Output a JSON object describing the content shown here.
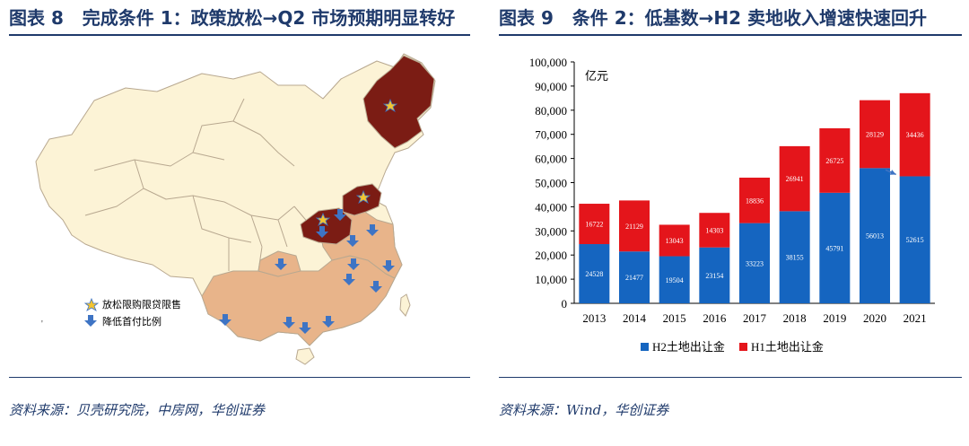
{
  "left_panel": {
    "figure_label": "图表 8",
    "title": "完成条件 1：政策放松→Q2 市场预期明显转好",
    "legend": [
      {
        "label": "放松限购限贷限售",
        "icon": "star-icon"
      },
      {
        "label": "降低首付比例",
        "icon": "down-arrow-icon"
      }
    ],
    "stray_mark": "'",
    "source": "资料来源：贝壳研究院，中房网，华创证券",
    "colors": {
      "relaxed": "#7b1c14",
      "lower_down_payment": "#e8b48a",
      "other": "#fcf3d6",
      "border": "#b8a890",
      "arrow": "#3e74c4",
      "star": "#f4c430"
    }
  },
  "right_panel": {
    "figure_label": "图表 9",
    "title": "条件 2：低基数→H2 卖地收入增速快速回升",
    "source": "资料来源：Wind，华创证券"
  },
  "chart_data": {
    "type": "bar",
    "stacked": true,
    "categories": [
      "2013",
      "2014",
      "2015",
      "2016",
      "2017",
      "2018",
      "2019",
      "2020",
      "2021"
    ],
    "series": [
      {
        "name": "H2土地出让金",
        "color": "#1565c0",
        "values": [
          24528,
          21477,
          19504,
          23154,
          33223,
          38155,
          45791,
          56013,
          52615
        ]
      },
      {
        "name": "H1土地出让金",
        "color": "#e4151b",
        "values": [
          16722,
          21129,
          13043,
          14303,
          18836,
          26941,
          26725,
          28129,
          34436
        ]
      }
    ],
    "ylabel": "亿元",
    "ylim": [
      0,
      100000
    ],
    "yticks": [
      "0",
      "10,000",
      "20,000",
      "30,000",
      "40,000",
      "50,000",
      "60,000",
      "70,000",
      "80,000",
      "90,000",
      "100,000"
    ],
    "annotation": "arrow from 2020 H2 top to 2021 H2 top",
    "grid": false,
    "legend_position": "bottom"
  }
}
